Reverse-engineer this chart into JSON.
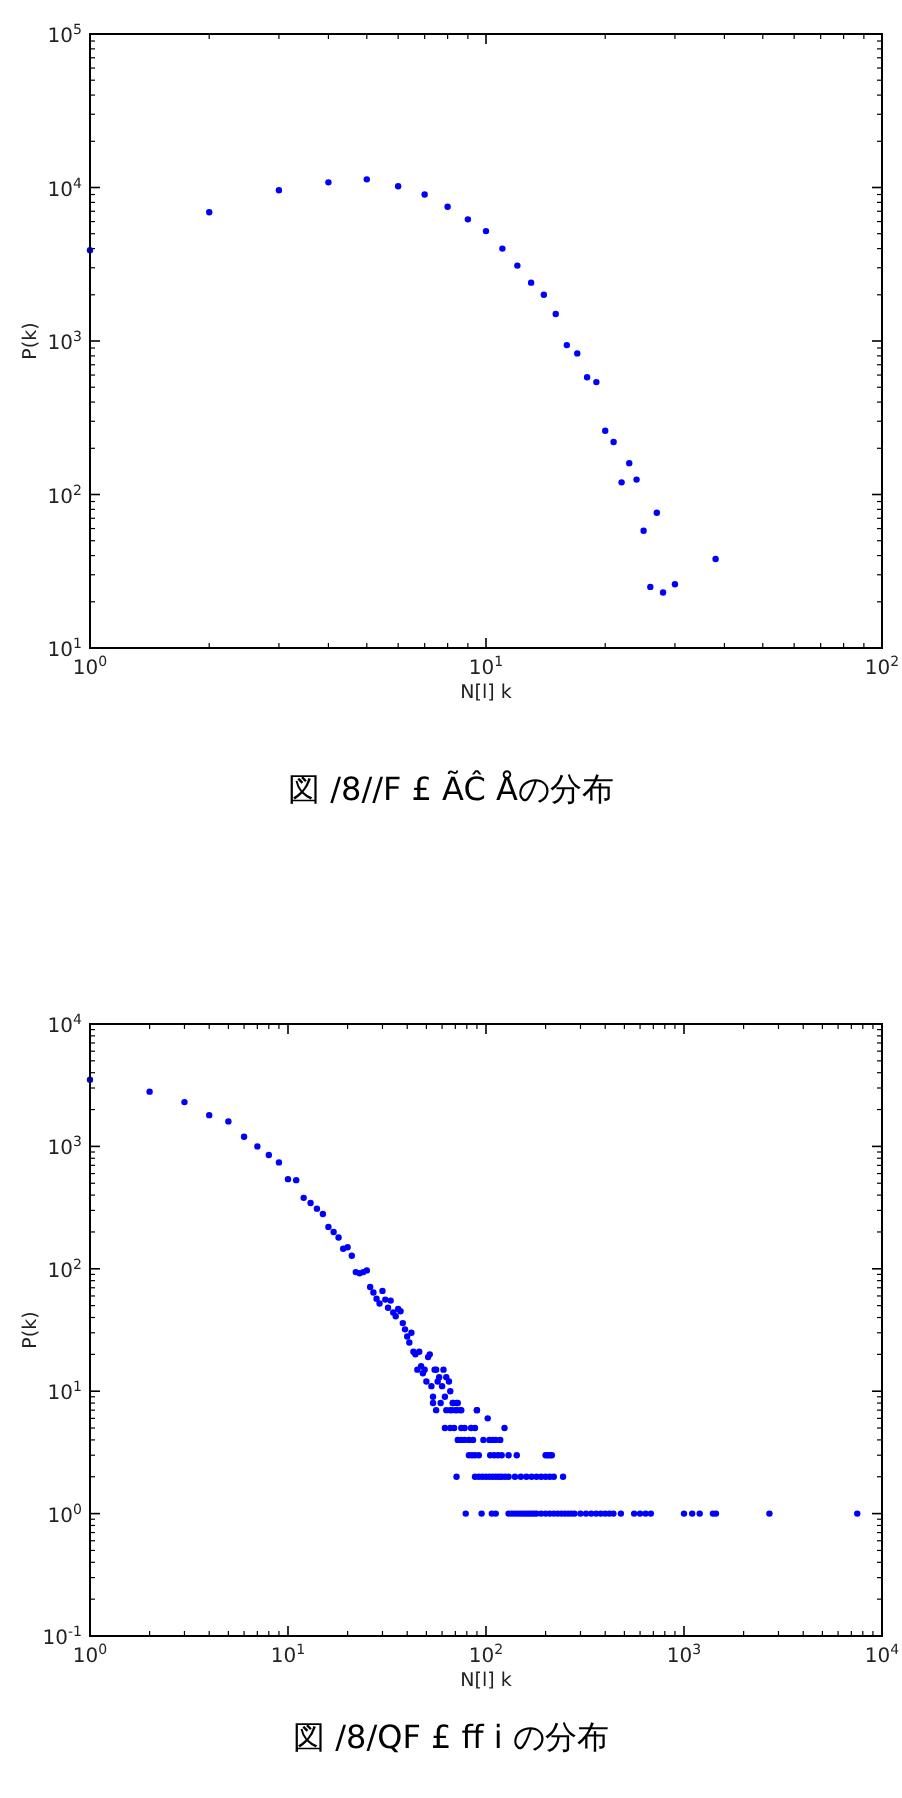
{
  "chart_data": [
    {
      "type": "scatter",
      "xlabel": "N[l]  k",
      "ylabel": "P(k)",
      "annotations": [
        "図 /8//F £ ÃĈ Åの分布"
      ],
      "log": "xy",
      "grid": false,
      "marker": "circle",
      "xlim": [
        1,
        100
      ],
      "ylim": [
        10,
        100000
      ],
      "xticks": [
        {
          "value": 1,
          "label": "10$^{0}$"
        },
        {
          "value": 10,
          "label": "10$^{1}$"
        },
        {
          "value": 100,
          "label": "10$^{2}$"
        }
      ],
      "yticks": [
        {
          "value": 10,
          "label": "10$^{1}$"
        },
        {
          "value": 100,
          "label": "10$^{2}$"
        },
        {
          "value": 1000,
          "label": "10$^{3}$"
        },
        {
          "value": 10000,
          "label": "10$^{4}$"
        },
        {
          "value": 100000,
          "label": "10$^{5}$"
        }
      ],
      "series": [
        {
          "color": "#0000ff",
          "x": [
            1,
            2,
            3,
            4,
            5,
            6,
            7,
            8,
            9,
            10,
            11,
            12,
            13,
            14,
            15,
            16,
            17,
            18,
            19,
            20,
            21,
            22,
            23,
            24,
            25,
            26,
            27,
            28,
            30,
            38
          ],
          "values": [
            3900,
            6900,
            9600,
            10800,
            11300,
            10200,
            9000,
            7500,
            6200,
            5200,
            4000,
            3100,
            2400,
            2000,
            1500,
            940,
            830,
            580,
            540,
            260,
            220,
            120,
            160,
            125,
            58,
            25,
            76,
            23,
            26,
            38
          ]
        }
      ]
    },
    {
      "type": "scatter",
      "xlabel": "N[l]  k",
      "ylabel": "P(k)",
      "annotations": [
        "図 /8/QF £ ff i の分布"
      ],
      "log": "xy",
      "grid": false,
      "marker": "circle",
      "xlim": [
        1,
        10000
      ],
      "ylim": [
        0.1,
        10000
      ],
      "xticks": [
        {
          "value": 1,
          "label": "10$^{0}$"
        },
        {
          "value": 10,
          "label": "10$^{1}$"
        },
        {
          "value": 100,
          "label": "10$^{2}$"
        },
        {
          "value": 1000,
          "label": "10$^{3}$"
        },
        {
          "value": 10000,
          "label": "10$^{4}$"
        }
      ],
      "yticks": [
        {
          "value": 0.1,
          "label": "10$^{-1}$"
        },
        {
          "value": 1,
          "label": "10$^{0}$"
        },
        {
          "value": 10,
          "label": "10$^{1}$"
        },
        {
          "value": 100,
          "label": "10$^{2}$"
        },
        {
          "value": 1000,
          "label": "10$^{3}$"
        },
        {
          "value": 10000,
          "label": "10$^{4}$"
        }
      ],
      "series": [
        {
          "color": "#0000ff",
          "x": [
            1,
            2,
            3,
            4,
            5,
            6,
            7,
            8,
            9,
            10,
            11,
            12,
            13,
            14,
            15,
            16,
            17,
            18,
            19,
            20,
            21,
            22,
            23,
            24,
            25,
            26,
            27,
            28,
            29,
            30,
            31,
            32,
            33,
            34,
            35,
            36,
            37,
            38,
            39,
            40,
            41,
            42,
            43,
            44,
            45,
            46,
            47,
            48,
            49,
            50,
            51,
            52,
            53,
            54,
            55,
            56,
            57,
            58,
            59,
            60,
            61,
            62,
            63,
            65,
            66,
            67,
            68,
            69,
            71,
            72,
            74,
            75,
            90,
            54,
            68,
            71,
            56,
            63,
            66,
            70,
            75,
            90,
            102,
            62,
            66,
            78,
            84,
            88,
            124,
            72,
            75,
            78,
            82,
            86,
            97,
            104,
            108,
            112,
            118,
            82,
            85,
            88,
            92,
            105,
            110,
            115,
            120,
            130,
            143,
            200,
            205,
            210,
            215,
            71,
            88,
            92,
            96,
            100,
            104,
            108,
            112,
            116,
            120,
            125,
            130,
            140,
            150,
            160,
            170,
            180,
            190,
            200,
            210,
            220,
            245,
            79,
            95,
            107,
            112,
            130,
            135,
            140,
            145,
            150,
            155,
            160,
            165,
            170,
            175,
            180,
            190,
            200,
            210,
            220,
            230,
            240,
            250,
            260,
            270,
            280,
            300,
            320,
            340,
            360,
            380,
            400,
            420,
            440,
            480,
            560,
            600,
            640,
            680,
            1000,
            1100,
            1200,
            1400,
            1450,
            2700,
            7500
          ],
          "values": [
            3500,
            2800,
            2300,
            1800,
            1600,
            1200,
            1000,
            850,
            740,
            540,
            530,
            380,
            345,
            310,
            280,
            220,
            200,
            180,
            146,
            150,
            128,
            94,
            92,
            94,
            97,
            71,
            64,
            57,
            52,
            66,
            56,
            48,
            55,
            44,
            41,
            47,
            45,
            36,
            32,
            28,
            25,
            30,
            21,
            20,
            15,
            21,
            16,
            14,
            15,
            12,
            19,
            20,
            11,
            9,
            15,
            15,
            12,
            13,
            8,
            11,
            15,
            9,
            13,
            12,
            10,
            7,
            8,
            5,
            7,
            8,
            7,
            5,
            7,
            8,
            8,
            8,
            7,
            7,
            7,
            7,
            7,
            7,
            6,
            5,
            5,
            5,
            5,
            5,
            5,
            4,
            4,
            4,
            4,
            4,
            4,
            4,
            4,
            4,
            4,
            3,
            3,
            3,
            3,
            3,
            3,
            3,
            3,
            3,
            3,
            3,
            3,
            3,
            3,
            2,
            2,
            2,
            2,
            2,
            2,
            2,
            2,
            2,
            2,
            2,
            2,
            2,
            2,
            2,
            2,
            2,
            2,
            2,
            2,
            2,
            2,
            1,
            1,
            1,
            1,
            1,
            1,
            1,
            1,
            1,
            1,
            1,
            1,
            1,
            1,
            1,
            1,
            1,
            1,
            1,
            1,
            1,
            1,
            1,
            1,
            1,
            1,
            1,
            1,
            1,
            1,
            1,
            1,
            1,
            1,
            1,
            1,
            1,
            1,
            1,
            1,
            1,
            1,
            1,
            1,
            1
          ]
        }
      ]
    }
  ]
}
